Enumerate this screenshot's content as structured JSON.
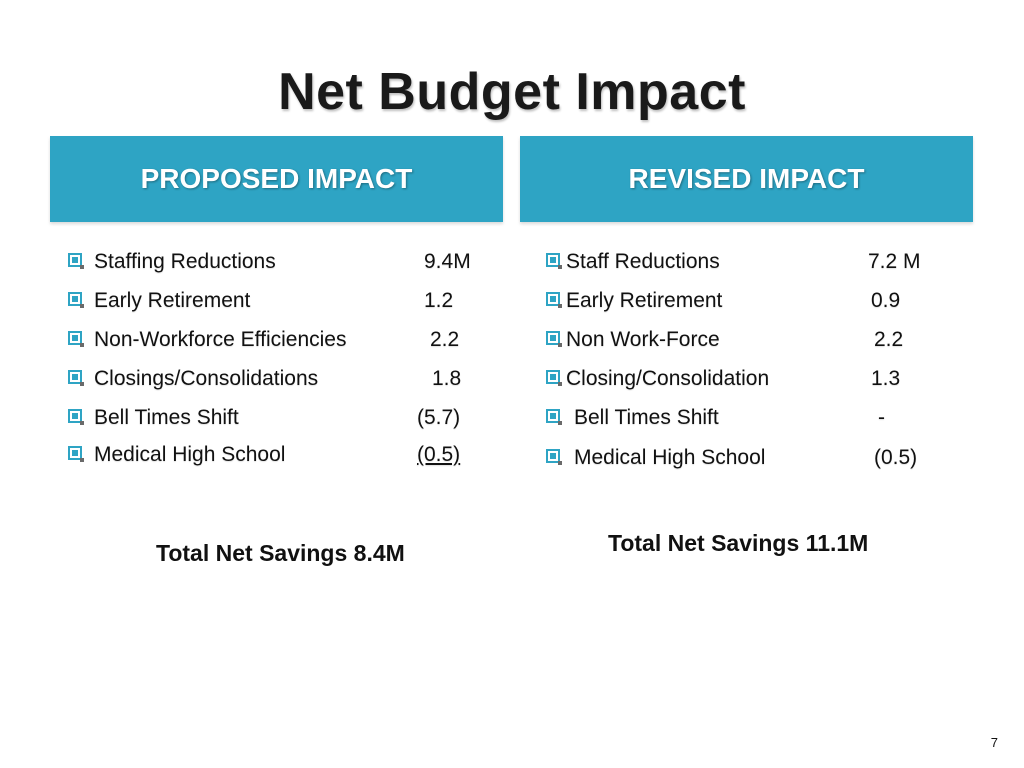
{
  "slide": {
    "title": "Net Budget Impact",
    "page_number": "7"
  },
  "colors": {
    "header_background": "#2ea4c4",
    "header_text": "#ffffff",
    "bullet": "#2ea4c4"
  },
  "left": {
    "header": "PROPOSED IMPACT",
    "items": [
      {
        "label": "Staffing Reductions",
        "value": "9.4M"
      },
      {
        "label": "Early Retirement",
        "value": "1.2"
      },
      {
        "label": "Non-Workforce Efficiencies",
        "value": "2.2"
      },
      {
        "label": "Closings/Consolidations",
        "value": "1.8"
      },
      {
        "label": "Bell Times Shift",
        "value": "(5.7)"
      },
      {
        "label": "Medical High School",
        "value": "(0.5)"
      }
    ],
    "total": "Total Net Savings  8.4M"
  },
  "right": {
    "header": "REVISED IMPACT",
    "items": [
      {
        "label": "Staff Reductions",
        "value": "7.2 M"
      },
      {
        "label": "Early Retirement",
        "value": "0.9"
      },
      {
        "label": "Non Work-Force",
        "value": "2.2"
      },
      {
        "label": "Closing/Consolidation",
        "value": "1.3"
      },
      {
        "label": "Bell Times Shift",
        "value": "-"
      },
      {
        "label": "Medical High School",
        "value": "(0.5)"
      }
    ],
    "total": "Total Net Savings  11.1M"
  }
}
